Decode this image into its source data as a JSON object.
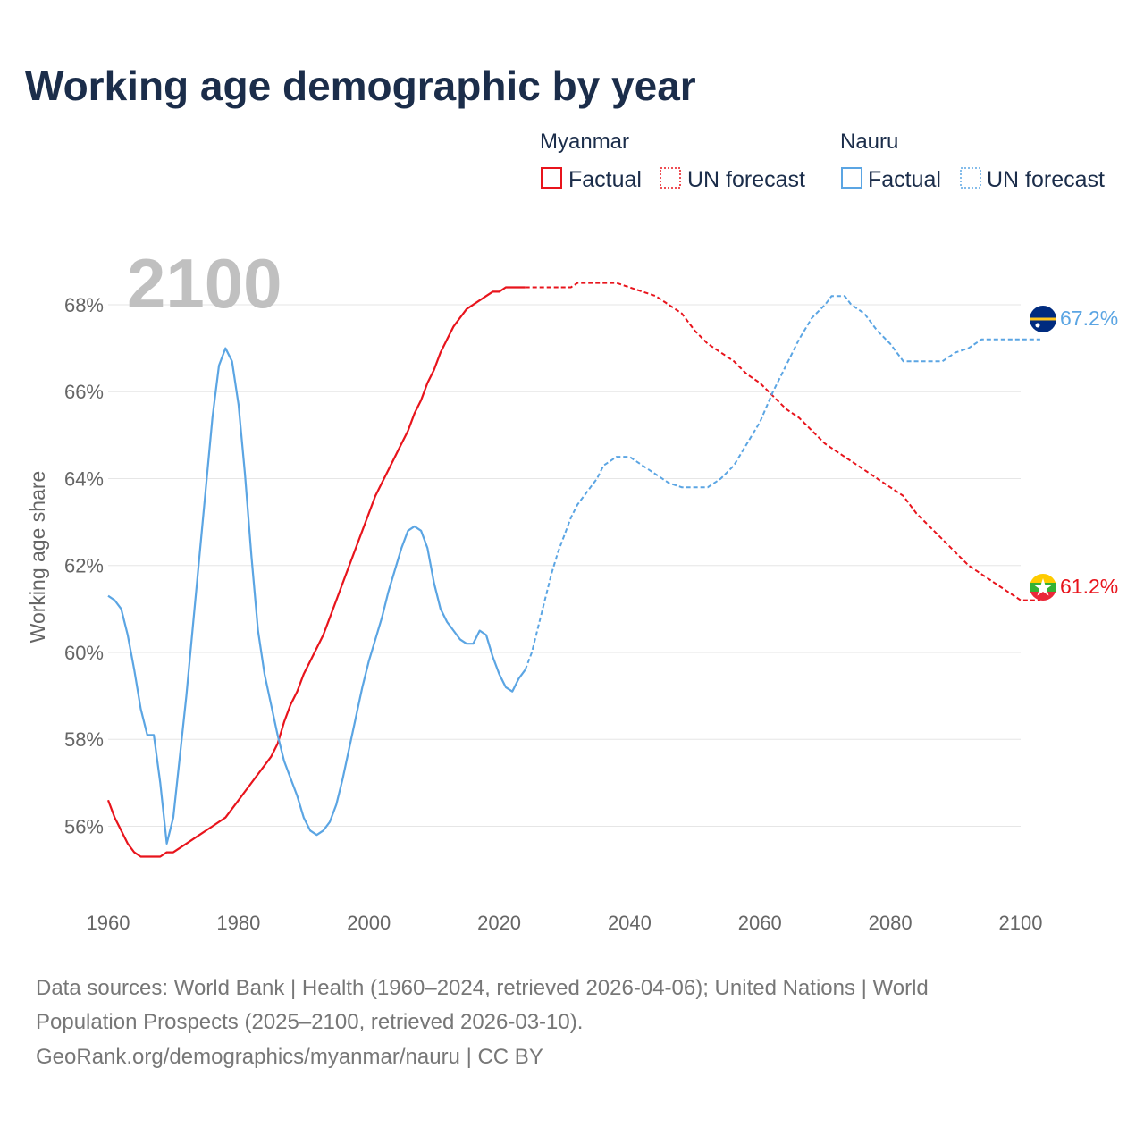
{
  "chart_data": {
    "type": "line",
    "title": "Working age demographic by year",
    "ylabel": "Working age share",
    "xlabel": "",
    "xlim": [
      1960,
      2100
    ],
    "ylim": [
      54.2,
      69.5
    ],
    "x_ticks": [
      "1960",
      "1980",
      "2000",
      "2020",
      "2040",
      "2060",
      "2080",
      "2100"
    ],
    "y_ticks": [
      {
        "value": 56,
        "label": "56%"
      },
      {
        "value": 58,
        "label": "58%"
      },
      {
        "value": 60,
        "label": "60%"
      },
      {
        "value": 62,
        "label": "62%"
      },
      {
        "value": 64,
        "label": "64%"
      },
      {
        "value": 66,
        "label": "66%"
      },
      {
        "value": 68,
        "label": "68%"
      }
    ],
    "current_year": "2100",
    "legend": {
      "groups": [
        {
          "name": "Myanmar",
          "factual": "Factual",
          "forecast": "UN forecast",
          "color": "#e8141c"
        },
        {
          "name": "Nauru",
          "factual": "Factual",
          "forecast": "UN forecast",
          "color": "#5ba5e3"
        }
      ]
    },
    "series": [
      {
        "name": "Myanmar",
        "color": "#e8141c",
        "end_label": "61.2%",
        "factual": [
          [
            1960,
            56.6
          ],
          [
            1961,
            56.2
          ],
          [
            1962,
            55.9
          ],
          [
            1963,
            55.6
          ],
          [
            1964,
            55.4
          ],
          [
            1965,
            55.3
          ],
          [
            1966,
            55.3
          ],
          [
            1967,
            55.3
          ],
          [
            1968,
            55.3
          ],
          [
            1969,
            55.4
          ],
          [
            1970,
            55.4
          ],
          [
            1972,
            55.6
          ],
          [
            1974,
            55.8
          ],
          [
            1976,
            56.0
          ],
          [
            1978,
            56.2
          ],
          [
            1980,
            56.6
          ],
          [
            1981,
            56.8
          ],
          [
            1983,
            57.2
          ],
          [
            1985,
            57.6
          ],
          [
            1986,
            57.9
          ],
          [
            1987,
            58.4
          ],
          [
            1988,
            58.8
          ],
          [
            1989,
            59.1
          ],
          [
            1990,
            59.5
          ],
          [
            1991,
            59.8
          ],
          [
            1992,
            60.1
          ],
          [
            1993,
            60.4
          ],
          [
            1994,
            60.8
          ],
          [
            1995,
            61.2
          ],
          [
            1996,
            61.6
          ],
          [
            1997,
            62.0
          ],
          [
            1998,
            62.4
          ],
          [
            1999,
            62.8
          ],
          [
            2000,
            63.2
          ],
          [
            2001,
            63.6
          ],
          [
            2002,
            63.9
          ],
          [
            2003,
            64.2
          ],
          [
            2004,
            64.5
          ],
          [
            2005,
            64.8
          ],
          [
            2006,
            65.1
          ],
          [
            2007,
            65.5
          ],
          [
            2008,
            65.8
          ],
          [
            2009,
            66.2
          ],
          [
            2010,
            66.5
          ],
          [
            2011,
            66.9
          ],
          [
            2012,
            67.2
          ],
          [
            2013,
            67.5
          ],
          [
            2014,
            67.7
          ],
          [
            2015,
            67.9
          ],
          [
            2016,
            68.0
          ],
          [
            2017,
            68.1
          ],
          [
            2018,
            68.2
          ],
          [
            2019,
            68.3
          ],
          [
            2020,
            68.3
          ],
          [
            2021,
            68.4
          ],
          [
            2022,
            68.4
          ],
          [
            2023,
            68.4
          ],
          [
            2024,
            68.4
          ]
        ],
        "forecast": [
          [
            2024,
            68.4
          ],
          [
            2025,
            68.4
          ],
          [
            2028,
            68.4
          ],
          [
            2031,
            68.4
          ],
          [
            2032,
            68.5
          ],
          [
            2034,
            68.5
          ],
          [
            2036,
            68.5
          ],
          [
            2038,
            68.5
          ],
          [
            2040,
            68.4
          ],
          [
            2042,
            68.3
          ],
          [
            2044,
            68.2
          ],
          [
            2046,
            68.0
          ],
          [
            2048,
            67.8
          ],
          [
            2050,
            67.4
          ],
          [
            2052,
            67.1
          ],
          [
            2054,
            66.9
          ],
          [
            2056,
            66.7
          ],
          [
            2058,
            66.4
          ],
          [
            2060,
            66.2
          ],
          [
            2062,
            65.9
          ],
          [
            2064,
            65.6
          ],
          [
            2066,
            65.4
          ],
          [
            2068,
            65.1
          ],
          [
            2070,
            64.8
          ],
          [
            2072,
            64.6
          ],
          [
            2074,
            64.4
          ],
          [
            2076,
            64.2
          ],
          [
            2078,
            64.0
          ],
          [
            2080,
            63.8
          ],
          [
            2082,
            63.6
          ],
          [
            2084,
            63.2
          ],
          [
            2086,
            62.9
          ],
          [
            2088,
            62.6
          ],
          [
            2090,
            62.3
          ],
          [
            2092,
            62.0
          ],
          [
            2094,
            61.8
          ],
          [
            2096,
            61.6
          ],
          [
            2098,
            61.4
          ],
          [
            2100,
            61.2
          ],
          [
            2103,
            61.2
          ]
        ]
      },
      {
        "name": "Nauru",
        "color": "#5ba5e3",
        "end_label": "67.2%",
        "factual": [
          [
            1960,
            61.3
          ],
          [
            1961,
            61.2
          ],
          [
            1962,
            61.0
          ],
          [
            1963,
            60.4
          ],
          [
            1964,
            59.6
          ],
          [
            1965,
            58.7
          ],
          [
            1966,
            58.1
          ],
          [
            1967,
            58.1
          ],
          [
            1968,
            57.0
          ],
          [
            1969,
            55.6
          ],
          [
            1970,
            56.2
          ],
          [
            1971,
            57.6
          ],
          [
            1972,
            59.0
          ],
          [
            1973,
            60.6
          ],
          [
            1974,
            62.2
          ],
          [
            1975,
            63.8
          ],
          [
            1976,
            65.4
          ],
          [
            1977,
            66.6
          ],
          [
            1978,
            67.0
          ],
          [
            1979,
            66.7
          ],
          [
            1980,
            65.7
          ],
          [
            1981,
            64.1
          ],
          [
            1982,
            62.2
          ],
          [
            1983,
            60.5
          ],
          [
            1984,
            59.5
          ],
          [
            1985,
            58.8
          ],
          [
            1986,
            58.1
          ],
          [
            1987,
            57.5
          ],
          [
            1988,
            57.1
          ],
          [
            1989,
            56.7
          ],
          [
            1990,
            56.2
          ],
          [
            1991,
            55.9
          ],
          [
            1992,
            55.8
          ],
          [
            1993,
            55.9
          ],
          [
            1994,
            56.1
          ],
          [
            1995,
            56.5
          ],
          [
            1996,
            57.1
          ],
          [
            1997,
            57.8
          ],
          [
            1998,
            58.5
          ],
          [
            1999,
            59.2
          ],
          [
            2000,
            59.8
          ],
          [
            2001,
            60.3
          ],
          [
            2002,
            60.8
          ],
          [
            2003,
            61.4
          ],
          [
            2004,
            61.9
          ],
          [
            2005,
            62.4
          ],
          [
            2006,
            62.8
          ],
          [
            2007,
            62.9
          ],
          [
            2008,
            62.8
          ],
          [
            2009,
            62.4
          ],
          [
            2010,
            61.6
          ],
          [
            2011,
            61.0
          ],
          [
            2012,
            60.7
          ],
          [
            2013,
            60.5
          ],
          [
            2014,
            60.3
          ],
          [
            2015,
            60.2
          ],
          [
            2016,
            60.2
          ],
          [
            2017,
            60.5
          ],
          [
            2018,
            60.4
          ],
          [
            2019,
            59.9
          ],
          [
            2020,
            59.5
          ],
          [
            2021,
            59.2
          ],
          [
            2022,
            59.1
          ],
          [
            2023,
            59.4
          ],
          [
            2024,
            59.6
          ]
        ],
        "forecast": [
          [
            2024,
            59.6
          ],
          [
            2025,
            60.0
          ],
          [
            2026,
            60.6
          ],
          [
            2027,
            61.2
          ],
          [
            2028,
            61.8
          ],
          [
            2029,
            62.3
          ],
          [
            2030,
            62.7
          ],
          [
            2031,
            63.1
          ],
          [
            2032,
            63.4
          ],
          [
            2033,
            63.6
          ],
          [
            2034,
            63.8
          ],
          [
            2035,
            64.0
          ],
          [
            2036,
            64.3
          ],
          [
            2037,
            64.4
          ],
          [
            2038,
            64.5
          ],
          [
            2039,
            64.5
          ],
          [
            2040,
            64.5
          ],
          [
            2042,
            64.3
          ],
          [
            2044,
            64.1
          ],
          [
            2046,
            63.9
          ],
          [
            2048,
            63.8
          ],
          [
            2050,
            63.8
          ],
          [
            2052,
            63.8
          ],
          [
            2054,
            64.0
          ],
          [
            2056,
            64.3
          ],
          [
            2058,
            64.8
          ],
          [
            2060,
            65.3
          ],
          [
            2062,
            66.0
          ],
          [
            2064,
            66.6
          ],
          [
            2066,
            67.2
          ],
          [
            2068,
            67.7
          ],
          [
            2070,
            68.0
          ],
          [
            2071,
            68.2
          ],
          [
            2072,
            68.2
          ],
          [
            2073,
            68.2
          ],
          [
            2074,
            68.0
          ],
          [
            2076,
            67.8
          ],
          [
            2078,
            67.4
          ],
          [
            2080,
            67.1
          ],
          [
            2082,
            66.7
          ],
          [
            2084,
            66.7
          ],
          [
            2086,
            66.7
          ],
          [
            2088,
            66.7
          ],
          [
            2090,
            66.9
          ],
          [
            2092,
            67.0
          ],
          [
            2094,
            67.2
          ],
          [
            2096,
            67.2
          ],
          [
            2098,
            67.2
          ],
          [
            2100,
            67.2
          ],
          [
            2103,
            67.2
          ]
        ]
      }
    ]
  },
  "sources": {
    "line1": "Data sources: World Bank | Health (1960–2024, retrieved 2026-04-06); United Nations | World",
    "line2": "Population Prospects (2025–2100, retrieved 2026-03-10).",
    "line3": "GeoRank.org/demographics/myanmar/nauru | CC BY"
  }
}
